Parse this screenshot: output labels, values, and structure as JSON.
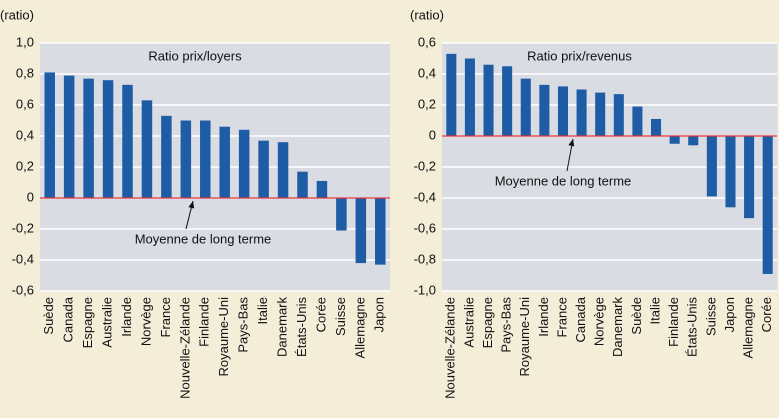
{
  "chart_data": [
    {
      "type": "bar",
      "title": "Ratio prix/loyers",
      "y_label": "(ratio)",
      "annotation": "Moyenne de long terme",
      "color": "#1f5ca6",
      "grid": true,
      "categories": [
        "Suède",
        "Canada",
        "Espagne",
        "Australie",
        "Irlande",
        "Norvège",
        "France",
        "Nouvelle-Zélande",
        "Finlande",
        "Royaume-Uni",
        "Pays-Bas",
        "Italie",
        "Danemark",
        "États-Unis",
        "Corée",
        "Suisse",
        "Allemagne",
        "Japon"
      ],
      "values": [
        0.81,
        0.79,
        0.77,
        0.76,
        0.73,
        0.63,
        0.53,
        0.5,
        0.5,
        0.46,
        0.44,
        0.37,
        0.36,
        0.17,
        0.11,
        -0.21,
        -0.42,
        -0.43
      ],
      "ylim": [
        -0.6,
        1.0
      ],
      "yticks": [
        {
          "value": -0.6,
          "label": "-0,6"
        },
        {
          "value": -0.4,
          "label": "-0,4"
        },
        {
          "value": -0.2,
          "label": "-0,2"
        },
        0,
        {
          "value": 0.2,
          "label": "0,2"
        },
        {
          "value": 0.4,
          "label": "0,4"
        },
        {
          "value": 0.6,
          "label": "0,6"
        },
        {
          "value": 0.8,
          "label": "0,8"
        },
        {
          "value": 1.0,
          "label": "1,0"
        }
      ]
    },
    {
      "type": "bar",
      "title": "Ratio prix/revenus",
      "y_label": "(ratio)",
      "annotation": "Moyenne de long terme",
      "color": "#1f5ca6",
      "grid": true,
      "categories": [
        "Nouvelle-Zélande",
        "Australie",
        "Espagne",
        "Pays-Bas",
        "Royaume-Uni",
        "Irlande",
        "France",
        "Canada",
        "Norvège",
        "Danemark",
        "Suède",
        "Italie",
        "Finlande",
        "États-Unis",
        "Suisse",
        "Japon",
        "Allemagne",
        "Corée"
      ],
      "values": [
        0.53,
        0.5,
        0.46,
        0.45,
        0.37,
        0.33,
        0.32,
        0.3,
        0.28,
        0.27,
        0.19,
        0.11,
        -0.05,
        -0.06,
        -0.39,
        -0.46,
        -0.53,
        -0.89
      ],
      "ylim": [
        -1.0,
        0.6
      ],
      "yticks": [
        {
          "value": -1.0,
          "label": "-1,0"
        },
        {
          "value": -0.8,
          "label": "-0,8"
        },
        {
          "value": -0.6,
          "label": "-0,6"
        },
        {
          "value": -0.4,
          "label": "-0,4"
        },
        {
          "value": -0.2,
          "label": "-0,2"
        },
        0,
        {
          "value": 0.2,
          "label": "0,2"
        },
        {
          "value": 0.4,
          "label": "0,4"
        },
        {
          "value": 0.6,
          "label": "0,6"
        }
      ]
    }
  ]
}
